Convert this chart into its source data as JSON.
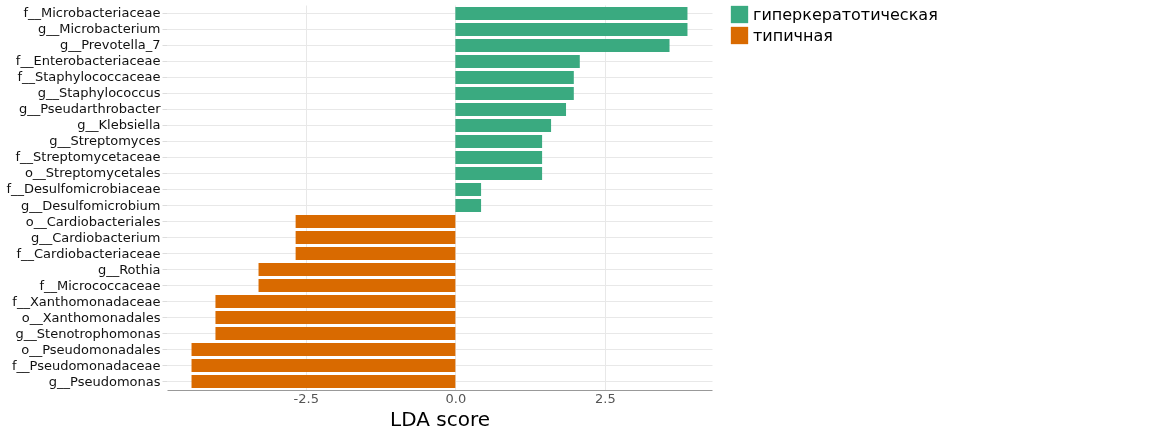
{
  "chart_data": {
    "type": "bar",
    "orientation": "horizontal",
    "xlabel": "LDA score",
    "categories": [
      "f__Microbacteriaceae",
      "g__Microbacterium",
      "g__Prevotella_7",
      "f__Enterobacteriaceae",
      "f__Staphylococcaceae",
      "g__Staphylococcus",
      "g__Pseudarthrobacter",
      "g__Klebsiella",
      "g__Streptomyces",
      "f__Streptomycetaceae",
      "o__Streptomycetales",
      "f__Desulfomicrobiaceae",
      "g__Desulfomicrobium",
      "o__Cardiobacteriales",
      "g__Cardiobacterium",
      "f__Cardiobacteriaceae",
      "g__Rothia",
      "f__Micrococcaceae",
      "f__Xanthomonadaceae",
      "o__Xanthomonadales",
      "g__Stenotrophomonas",
      "o__Pseudomonadales",
      "f__Pseudomonadaceae",
      "g__Pseudomonas"
    ],
    "series": [
      {
        "name": "гиперкератотическая",
        "color": "#3aaa80",
        "values": [
          3.88,
          3.88,
          3.58,
          2.08,
          1.98,
          1.98,
          1.85,
          1.6,
          1.45,
          1.45,
          1.45,
          0.43,
          0.43,
          null,
          null,
          null,
          null,
          null,
          null,
          null,
          null,
          null,
          null,
          null
        ]
      },
      {
        "name": "типичная",
        "color": "#d96a00",
        "values": [
          null,
          null,
          null,
          null,
          null,
          null,
          null,
          null,
          null,
          null,
          null,
          null,
          null,
          -2.67,
          -2.67,
          -2.67,
          -3.29,
          -3.29,
          -4.01,
          -4.01,
          -4.01,
          -4.41,
          -4.41,
          -4.41
        ]
      }
    ],
    "xlim": [
      -4.82,
      4.29
    ],
    "xticks": [
      {
        "value": -2.5,
        "label": "-2.5"
      },
      {
        "value": 0,
        "label": "0.0"
      },
      {
        "value": 2.5,
        "label": "2.5"
      }
    ],
    "grid": true,
    "legend": "right"
  }
}
